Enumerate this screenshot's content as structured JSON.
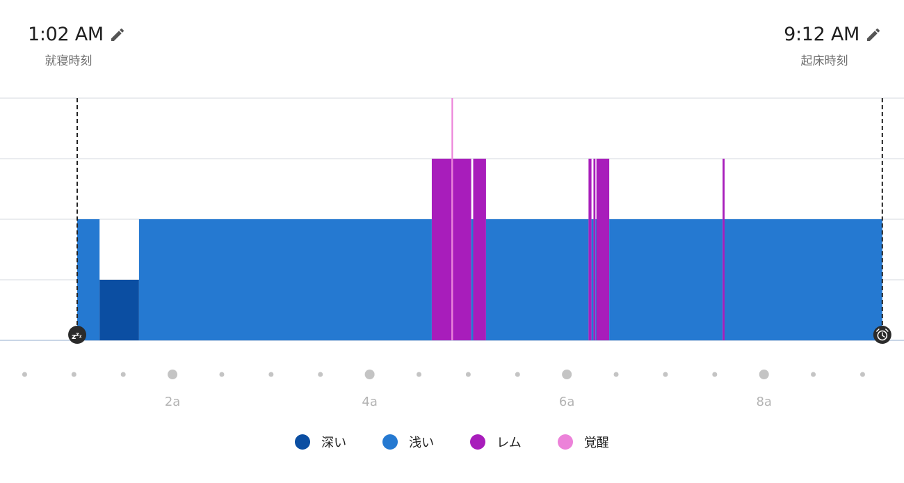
{
  "header": {
    "bedtime": {
      "time": "1:02 AM",
      "label": "就寝時刻"
    },
    "wake": {
      "time": "9:12 AM",
      "label": "起床時刻"
    }
  },
  "icons": {
    "start": "sleep-zzz-icon",
    "end": "alarm-clock-icon",
    "edit": "pencil-icon"
  },
  "chart_data": {
    "type": "area",
    "x_unit": "hour-of-night",
    "start": 1.0333,
    "end": 9.2,
    "xlim": [
      0.25,
      9.42
    ],
    "x_ticks": [
      {
        "value": 2,
        "label": "2a"
      },
      {
        "value": 4,
        "label": "4a"
      },
      {
        "value": 6,
        "label": "6a"
      },
      {
        "value": 8,
        "label": "8a"
      }
    ],
    "stage_levels": {
      "deep": 1,
      "light": 2,
      "rem": 3,
      "awake": 4
    },
    "stages": [
      {
        "name": "深い",
        "key": "deep",
        "color": "#0b4ea2"
      },
      {
        "name": "浅い",
        "key": "light",
        "color": "#2579d1"
      },
      {
        "name": "レム",
        "key": "rem",
        "color": "#a81dbb"
      },
      {
        "name": "覚醒",
        "key": "awake",
        "color": "#ec82d9"
      }
    ],
    "segments": [
      {
        "stage": "light",
        "start": 1.0333,
        "end": 1.26
      },
      {
        "stage": "deep",
        "start": 1.26,
        "end": 1.66
      },
      {
        "stage": "light",
        "start": 1.66,
        "end": 4.63
      },
      {
        "stage": "rem",
        "start": 4.63,
        "end": 4.83
      },
      {
        "stage": "awake",
        "start": 4.83,
        "end": 4.845
      },
      {
        "stage": "rem",
        "start": 4.845,
        "end": 5.03
      },
      {
        "stage": "light",
        "start": 5.03,
        "end": 5.05
      },
      {
        "stage": "rem",
        "start": 5.05,
        "end": 5.18
      },
      {
        "stage": "light",
        "start": 5.18,
        "end": 6.22
      },
      {
        "stage": "rem",
        "start": 6.22,
        "end": 6.25
      },
      {
        "stage": "light",
        "start": 6.25,
        "end": 6.27
      },
      {
        "stage": "rem",
        "start": 6.27,
        "end": 6.29
      },
      {
        "stage": "light",
        "start": 6.29,
        "end": 6.3
      },
      {
        "stage": "rem",
        "start": 6.3,
        "end": 6.43
      },
      {
        "stage": "light",
        "start": 6.43,
        "end": 7.58
      },
      {
        "stage": "rem",
        "start": 7.58,
        "end": 7.6
      },
      {
        "stage": "light",
        "start": 7.6,
        "end": 9.2
      }
    ],
    "grid": true
  }
}
